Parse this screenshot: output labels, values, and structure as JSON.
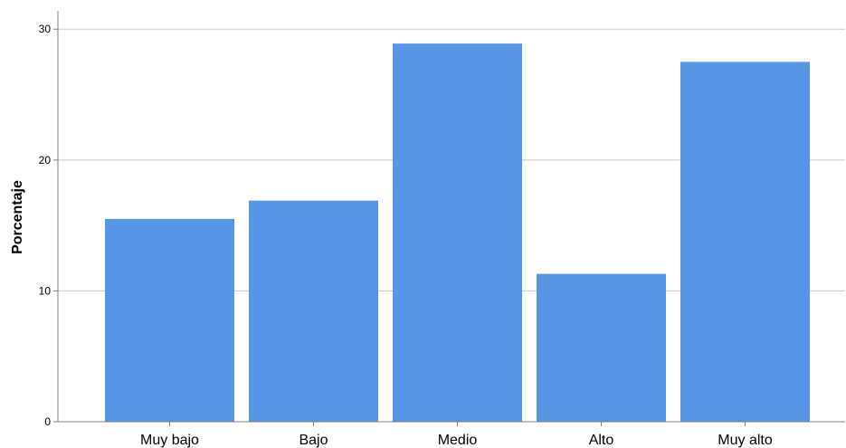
{
  "chart_data": {
    "type": "bar",
    "title": "",
    "xlabel": "",
    "ylabel": "Porcentaje",
    "categories": [
      "Muy bajo",
      "Bajo",
      "Medio",
      "Alto",
      "Muy alto"
    ],
    "values": [
      15.5,
      16.9,
      28.9,
      11.3,
      27.5
    ],
    "ylim": [
      0,
      31.4
    ],
    "yticks": [
      0,
      10,
      20,
      30
    ],
    "ytick_labels": [
      "0",
      "10",
      "20",
      "30"
    ],
    "grid": true,
    "legend": "none",
    "colors": {
      "bar": "#5596e6",
      "grid": "#c8c8c8",
      "axis": "#808080"
    }
  }
}
